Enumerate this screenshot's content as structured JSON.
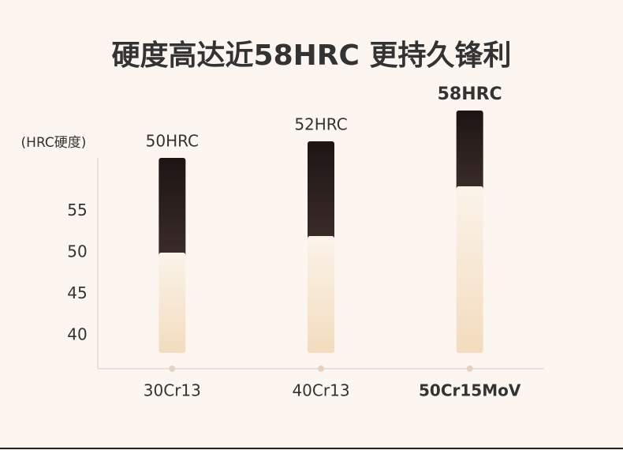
{
  "chart_data": {
    "type": "bar",
    "title": "硬度高达近58HRC 更持久锋利",
    "y_label": "(HRC硬度)",
    "categories": [
      "30Cr13",
      "40Cr13",
      "50Cr15MoV"
    ],
    "values": [
      50,
      52,
      58
    ],
    "value_labels": [
      "50HRC",
      "52HRC",
      "58HRC"
    ],
    "highlight": 2,
    "ylim": [
      36,
      62
    ],
    "yticks": [
      40,
      45,
      50,
      55
    ]
  }
}
